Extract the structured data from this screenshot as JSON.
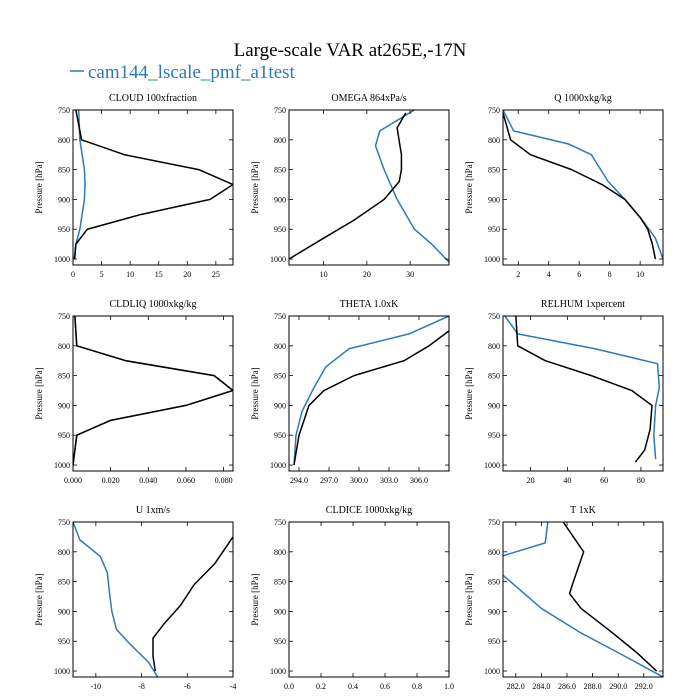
{
  "figure": {
    "title": "Large-scale VAR at265E,-17N",
    "legend_label": "cam144_lscale_pmf_a1test",
    "colors": {
      "blue": "#2b7bb9",
      "black": "#000000"
    }
  },
  "chart_data": [
    {
      "type": "line",
      "title": "CLOUD  100xfraction",
      "ylabel": "Pressure [hPa]",
      "xlim": [
        0,
        28
      ],
      "ylim": [
        1010,
        750
      ],
      "xticks": [
        0,
        5,
        10,
        15,
        20,
        25
      ],
      "xtick_labels": [
        "0",
        "5",
        "10",
        "15",
        "20",
        "25"
      ],
      "yticks": [
        750,
        800,
        850,
        900,
        950,
        1000
      ],
      "series": [
        {
          "color": "blue",
          "points": [
            [
              1.0,
              750
            ],
            [
              1.2,
              800
            ],
            [
              2.0,
              850
            ],
            [
              2.1,
              875
            ],
            [
              2.0,
              900
            ],
            [
              1.2,
              950
            ],
            [
              0.5,
              975
            ],
            [
              0.2,
              1000
            ]
          ]
        },
        {
          "color": "black",
          "points": [
            [
              0.5,
              750
            ],
            [
              1.5,
              800
            ],
            [
              9,
              825
            ],
            [
              22,
              850
            ],
            [
              28,
              875
            ],
            [
              24,
              900
            ],
            [
              12,
              925
            ],
            [
              2.5,
              950
            ],
            [
              0.5,
              975
            ],
            [
              0.3,
              1000
            ]
          ]
        }
      ]
    },
    {
      "type": "line",
      "title": "OMEGA  864xPa/s",
      "ylabel": "Pressure [hPa]",
      "xlim": [
        2,
        39
      ],
      "ylim": [
        1010,
        750
      ],
      "xticks": [
        10,
        20,
        30
      ],
      "xtick_labels": [
        "10",
        "20",
        "30"
      ],
      "yticks": [
        750,
        800,
        850,
        900,
        950,
        1000
      ],
      "series": [
        {
          "color": "blue",
          "points": [
            [
              31,
              750
            ],
            [
              23,
              785
            ],
            [
              22,
              810
            ],
            [
              24,
              850
            ],
            [
              27,
              900
            ],
            [
              31,
              950
            ],
            [
              35,
              975
            ],
            [
              39,
              1005
            ]
          ]
        },
        {
          "color": "black",
          "points": [
            [
              29,
              755
            ],
            [
              27,
              780
            ],
            [
              28,
              825
            ],
            [
              28,
              850
            ],
            [
              27.5,
              870
            ],
            [
              24,
              900
            ],
            [
              17,
              935
            ],
            [
              10,
              965
            ],
            [
              2,
              1000
            ]
          ]
        }
      ]
    },
    {
      "type": "line",
      "title": "Q  1000xkg/kg",
      "ylabel": "Pressure [hPa]",
      "xlim": [
        1,
        11.5
      ],
      "ylim": [
        1010,
        750
      ],
      "xticks": [
        2,
        4,
        6,
        8,
        10
      ],
      "xtick_labels": [
        "2",
        "4",
        "6",
        "8",
        "10"
      ],
      "yticks": [
        750,
        800,
        850,
        900,
        950,
        1000
      ],
      "series": [
        {
          "color": "blue",
          "points": [
            [
              1.0,
              750
            ],
            [
              1.7,
              785
            ],
            [
              5.3,
              807
            ],
            [
              6.8,
              825
            ],
            [
              7.9,
              870
            ],
            [
              9.0,
              900
            ],
            [
              10.3,
              940
            ],
            [
              11.0,
              965
            ],
            [
              11.5,
              1000
            ]
          ]
        },
        {
          "color": "black",
          "points": [
            [
              1.0,
              755
            ],
            [
              1.5,
              800
            ],
            [
              2.8,
              825
            ],
            [
              5.5,
              850
            ],
            [
              7.5,
              875
            ],
            [
              9.0,
              900
            ],
            [
              10.0,
              930
            ],
            [
              10.5,
              950
            ],
            [
              10.8,
              975
            ],
            [
              11.0,
              1000
            ]
          ]
        }
      ]
    },
    {
      "type": "line",
      "title": "CLDLIQ  1000xkg/kg",
      "ylabel": "Pressure [hPa]",
      "xlim": [
        0,
        0.085
      ],
      "ylim": [
        1010,
        750
      ],
      "xticks": [
        0,
        0.02,
        0.04,
        0.06,
        0.08
      ],
      "xtick_labels": [
        "0.000",
        "0.020",
        "0.040",
        "0.060",
        "0.080"
      ],
      "yticks": [
        750,
        800,
        850,
        900,
        950,
        1000
      ],
      "series": [
        {
          "color": "blue",
          "points": [
            [
              0.001,
              750
            ],
            [
              0.002,
              800
            ],
            [
              0.028,
              825
            ],
            [
              0.075,
              850
            ],
            [
              0.085,
              875
            ],
            [
              0.06,
              900
            ],
            [
              0.02,
              925
            ],
            [
              0.002,
              950
            ],
            [
              0.001,
              975
            ],
            [
              0.0,
              1000
            ]
          ]
        },
        {
          "color": "black",
          "points": [
            [
              0.001,
              750
            ],
            [
              0.002,
              800
            ],
            [
              0.028,
              825
            ],
            [
              0.075,
              850
            ],
            [
              0.085,
              875
            ],
            [
              0.06,
              900
            ],
            [
              0.02,
              925
            ],
            [
              0.002,
              950
            ],
            [
              0.001,
              975
            ],
            [
              0.0,
              1000
            ]
          ]
        }
      ]
    },
    {
      "type": "line",
      "title": "THETA  1.0xK",
      "ylabel": "Pressure [hPa]",
      "xlim": [
        293,
        309
      ],
      "ylim": [
        1010,
        750
      ],
      "xticks": [
        294,
        297,
        300,
        303,
        306
      ],
      "xtick_labels": [
        "294.0",
        "297.0",
        "300.0",
        "303.0",
        "306.0"
      ],
      "yticks": [
        750,
        800,
        850,
        900,
        950,
        1000
      ],
      "series": [
        {
          "color": "blue",
          "points": [
            [
              309,
              750
            ],
            [
              305,
              780
            ],
            [
              299,
              805
            ],
            [
              296.7,
              835
            ],
            [
              295.5,
              870
            ],
            [
              294.3,
              910
            ],
            [
              293.7,
              950
            ],
            [
              293.5,
              1000
            ]
          ]
        },
        {
          "color": "black",
          "points": [
            [
              309,
              775
            ],
            [
              307,
              800
            ],
            [
              304.5,
              825
            ],
            [
              299.5,
              850
            ],
            [
              296.5,
              875
            ],
            [
              295,
              900
            ],
            [
              294,
              950
            ],
            [
              293.5,
              1000
            ]
          ]
        }
      ]
    },
    {
      "type": "line",
      "title": "RELHUM  1xpercent",
      "ylabel": "Pressure [hPa]",
      "xlim": [
        5,
        92
      ],
      "ylim": [
        1010,
        750
      ],
      "xticks": [
        20,
        40,
        60,
        80
      ],
      "xtick_labels": [
        "20",
        "40",
        "60",
        "80"
      ],
      "yticks": [
        750,
        800,
        850,
        900,
        950,
        1000
      ],
      "series": [
        {
          "color": "blue",
          "points": [
            [
              6,
              750
            ],
            [
              13,
              780
            ],
            [
              55,
              805
            ],
            [
              89,
              830
            ],
            [
              90,
              870
            ],
            [
              88,
              900
            ],
            [
              87,
              950
            ],
            [
              88,
              990
            ]
          ]
        },
        {
          "color": "black",
          "points": [
            [
              12,
              750
            ],
            [
              13,
              800
            ],
            [
              28,
              825
            ],
            [
              53,
              850
            ],
            [
              75,
              875
            ],
            [
              86,
              900
            ],
            [
              85,
              940
            ],
            [
              82,
              975
            ],
            [
              77,
              995
            ]
          ]
        }
      ]
    },
    {
      "type": "line",
      "title": "U  1xm/s",
      "ylabel": "Pressure [hPa]",
      "xlim": [
        -11,
        -4
      ],
      "ylim": [
        1010,
        750
      ],
      "xticks": [
        -10,
        -8,
        -6,
        -4
      ],
      "xtick_labels": [
        "-10",
        "-8",
        "-6",
        "-4"
      ],
      "yticks": [
        750,
        800,
        850,
        900,
        950,
        1000
      ],
      "series": [
        {
          "color": "blue",
          "points": [
            [
              -11,
              750
            ],
            [
              -10.7,
              780
            ],
            [
              -9.8,
              808
            ],
            [
              -9.5,
              835
            ],
            [
              -9.4,
              870
            ],
            [
              -9.3,
              900
            ],
            [
              -9.1,
              930
            ],
            [
              -8.5,
              955
            ],
            [
              -7.7,
              985
            ],
            [
              -7.3,
              1010
            ]
          ]
        },
        {
          "color": "black",
          "points": [
            [
              -4,
              775
            ],
            [
              -4.8,
              820
            ],
            [
              -5.7,
              855
            ],
            [
              -6.3,
              890
            ],
            [
              -7.0,
              920
            ],
            [
              -7.5,
              945
            ],
            [
              -7.5,
              975
            ],
            [
              -7.4,
              1000
            ]
          ]
        }
      ]
    },
    {
      "type": "line",
      "title": "CLDICE  1000xkg/kg",
      "ylabel": "Pressure [hPa]",
      "xlim": [
        0,
        1
      ],
      "ylim": [
        1010,
        750
      ],
      "xticks": [
        0,
        0.2,
        0.4,
        0.6,
        0.8,
        1.0
      ],
      "xtick_labels": [
        "0.0",
        "0.2",
        "0.4",
        "0.6",
        "0.8",
        "1.0"
      ],
      "yticks": [
        750,
        800,
        850,
        900,
        950,
        1000
      ],
      "series": []
    },
    {
      "type": "line",
      "title": "T  1xK",
      "ylabel": "Pressure [hPa]",
      "xlim": [
        281,
        293.5
      ],
      "ylim": [
        1010,
        750
      ],
      "xticks": [
        282,
        284,
        286,
        288,
        290,
        292
      ],
      "xtick_labels": [
        "282.0",
        "284.0",
        "286.0",
        "288.0",
        "290.0",
        "292.0"
      ],
      "yticks": [
        750,
        800,
        850,
        900,
        950,
        1000
      ],
      "series": [
        {
          "color": "blue",
          "points": [
            [
              284.5,
              750
            ],
            [
              284.3,
              785
            ],
            [
              280.5,
              810
            ],
            [
              280.5,
              830
            ],
            [
              284,
              895
            ],
            [
              287,
              935
            ],
            [
              290.5,
              975
            ],
            [
              293.5,
              1010
            ]
          ]
        },
        {
          "color": "black",
          "points": [
            [
              285.7,
              750
            ],
            [
              287.3,
              800
            ],
            [
              286.5,
              850
            ],
            [
              286.2,
              870
            ],
            [
              287.1,
              895
            ],
            [
              289.5,
              935
            ],
            [
              291.5,
              970
            ],
            [
              293,
              1000
            ]
          ]
        }
      ]
    }
  ]
}
